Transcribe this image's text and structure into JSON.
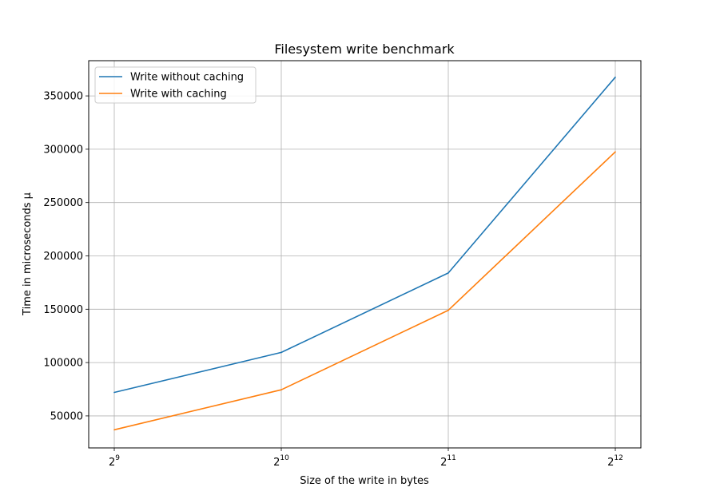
{
  "chart_data": {
    "type": "line",
    "title": "Filesystem write benchmark",
    "xlabel": "Size of the write in bytes",
    "ylabel": "Time in microseconds μ",
    "x_scale": "log2",
    "x": [
      512,
      1024,
      2048,
      4096
    ],
    "x_tick_labels": [
      {
        "base": "2",
        "exp": "9"
      },
      {
        "base": "2",
        "exp": "10"
      },
      {
        "base": "2",
        "exp": "11"
      },
      {
        "base": "2",
        "exp": "12"
      }
    ],
    "y_ticks": [
      50000,
      100000,
      150000,
      200000,
      250000,
      300000,
      350000
    ],
    "y_tick_labels": [
      "50000",
      "100000",
      "150000",
      "200000",
      "250000",
      "300000",
      "350000"
    ],
    "ylim": [
      20000,
      383000
    ],
    "grid": true,
    "legend_position": "upper-left",
    "series": [
      {
        "name": "Write without caching",
        "color": "#1f77b4",
        "values": [
          72000,
          109500,
          184000,
          367500
        ]
      },
      {
        "name": "Write with caching",
        "color": "#ff7f0e",
        "values": [
          37000,
          74500,
          149000,
          297500
        ]
      }
    ]
  }
}
